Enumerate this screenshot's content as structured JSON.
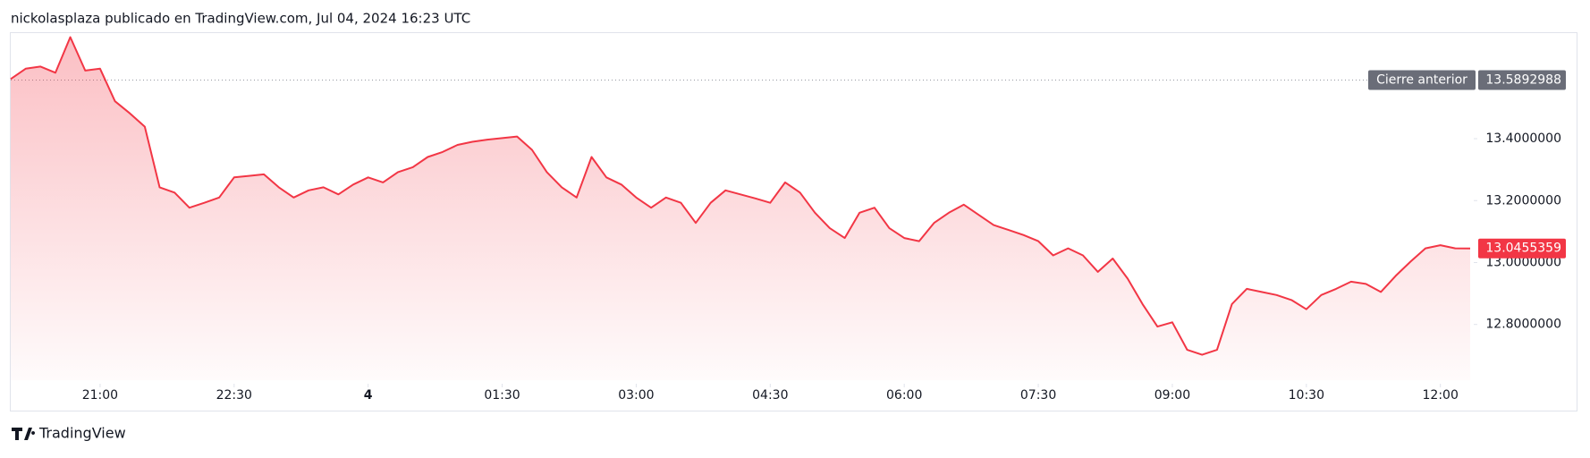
{
  "header": "nickolasplaza publicado en TradingView.com, Jul 04, 2024 16:23 UTC",
  "branding": "TradingView",
  "chart_data": {
    "type": "line",
    "x": [
      "20:00",
      "20:10",
      "20:20",
      "20:30",
      "20:40",
      "20:50",
      "21:00",
      "21:10",
      "21:20",
      "21:30",
      "21:40",
      "21:50",
      "22:00",
      "22:10",
      "22:20",
      "22:30",
      "22:40",
      "22:50",
      "23:00",
      "23:10",
      "23:20",
      "23:30",
      "23:40",
      "23:50",
      "00:00",
      "00:10",
      "00:20",
      "00:30",
      "00:40",
      "00:50",
      "01:00",
      "01:10",
      "01:20",
      "01:30",
      "01:40",
      "01:50",
      "02:00",
      "02:10",
      "02:20",
      "02:30",
      "02:40",
      "02:50",
      "03:00",
      "03:10",
      "03:20",
      "03:30",
      "03:40",
      "03:50",
      "04:00",
      "04:10",
      "04:20",
      "04:30",
      "04:40",
      "04:50",
      "05:00",
      "05:10",
      "05:20",
      "05:30",
      "05:40",
      "05:50",
      "06:00",
      "06:10",
      "06:20",
      "06:30",
      "06:40",
      "06:50",
      "07:00",
      "07:10",
      "07:20",
      "07:30",
      "07:40",
      "07:50",
      "08:00",
      "08:10",
      "08:20",
      "08:30",
      "08:40",
      "08:50",
      "09:00",
      "09:10",
      "09:20",
      "09:30",
      "09:40",
      "09:50",
      "10:00",
      "10:10",
      "10:20",
      "10:30",
      "10:40",
      "10:50",
      "11:00",
      "11:10",
      "11:20",
      "11:30",
      "11:40",
      "11:50",
      "12:00",
      "12:10",
      "12:20"
    ],
    "series": [
      {
        "color": "#f23645",
        "values": [
          13.593,
          13.626,
          13.633,
          13.613,
          13.728,
          13.62,
          13.626,
          13.521,
          13.482,
          13.439,
          13.243,
          13.226,
          13.177,
          13.193,
          13.21,
          13.275,
          13.28,
          13.285,
          13.243,
          13.21,
          13.233,
          13.243,
          13.22,
          13.252,
          13.275,
          13.259,
          13.292,
          13.308,
          13.341,
          13.357,
          13.38,
          13.39,
          13.397,
          13.402,
          13.407,
          13.364,
          13.292,
          13.243,
          13.21,
          13.341,
          13.275,
          13.252,
          13.21,
          13.177,
          13.21,
          13.193,
          13.128,
          13.193,
          13.233,
          13.22,
          13.207,
          13.193,
          13.259,
          13.226,
          13.161,
          13.111,
          13.079,
          13.161,
          13.177,
          13.111,
          13.079,
          13.069,
          13.128,
          13.161,
          13.187,
          13.154,
          13.121,
          13.105,
          13.089,
          13.069,
          13.023,
          13.046,
          13.023,
          12.97,
          13.013,
          12.948,
          12.866,
          12.793,
          12.807,
          12.718,
          12.702,
          12.718,
          12.866,
          12.915,
          12.905,
          12.895,
          12.879,
          12.849,
          12.895,
          12.915,
          12.938,
          12.931,
          12.905,
          12.957,
          13.003,
          13.046,
          13.056,
          13.046,
          13.0455359
        ]
      }
    ],
    "ylim": [
      12.62,
      13.744
    ],
    "yticks": [
      {
        "value": 12.8,
        "label": "12.8000000"
      },
      {
        "value": 13.0,
        "label": "13.0000000"
      },
      {
        "value": 13.2,
        "label": "13.2000000"
      },
      {
        "value": 13.4,
        "label": "13.4000000"
      }
    ],
    "xticks": [
      "21:00",
      "22:30",
      {
        "value": "00:00",
        "label": "4"
      },
      "01:30",
      "03:00",
      "04:30",
      "06:00",
      "07:30",
      "09:00",
      "10:30",
      "12:00"
    ],
    "previous_close": {
      "label": "Cierre anterior",
      "value": 13.5892988,
      "value_label": "13.5892988"
    }
  }
}
